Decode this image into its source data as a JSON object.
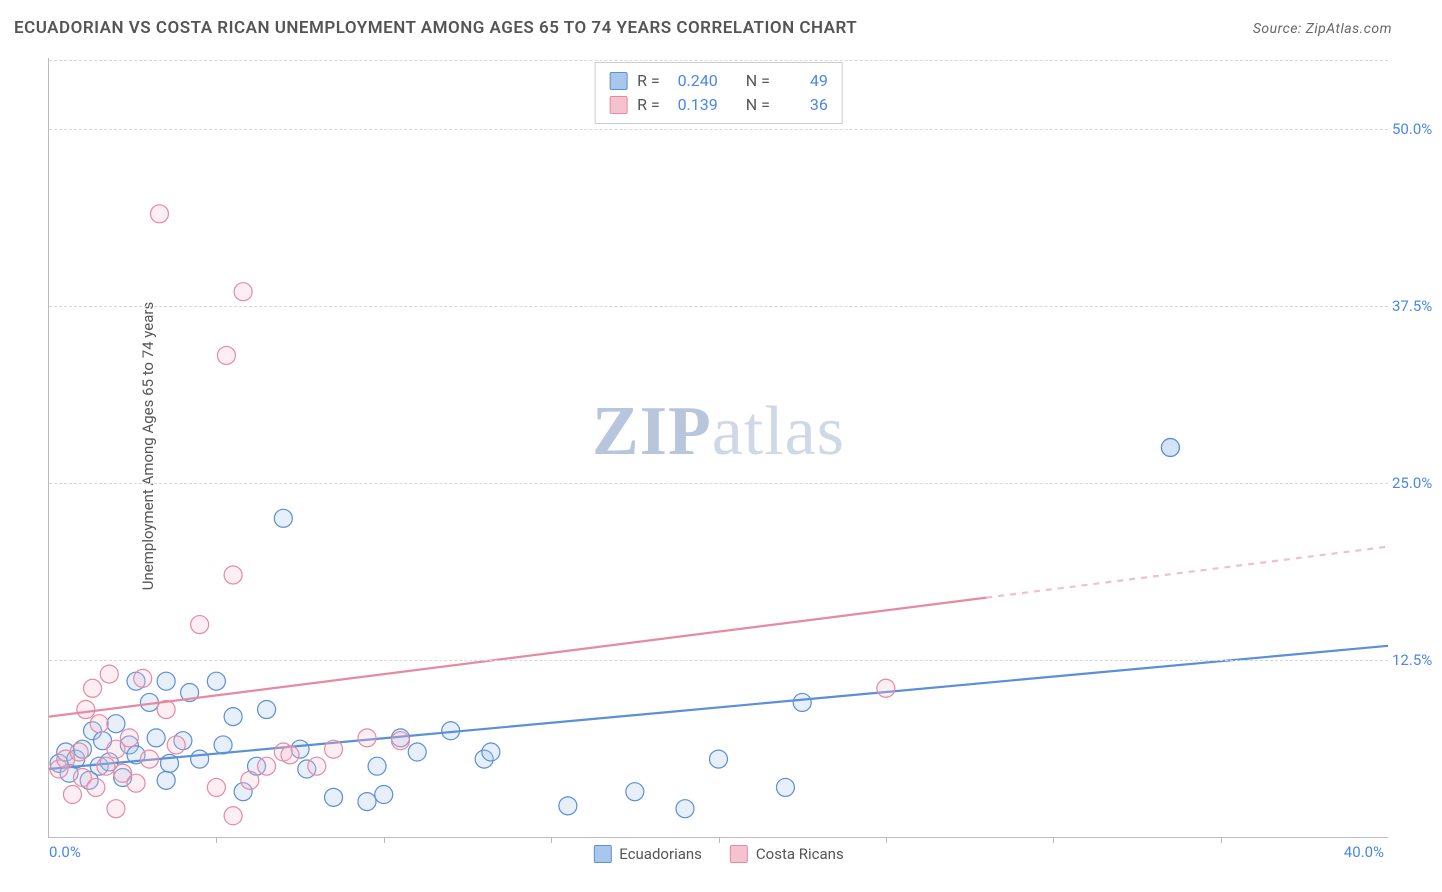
{
  "title": "ECUADORIAN VS COSTA RICAN UNEMPLOYMENT AMONG AGES 65 TO 74 YEARS CORRELATION CHART",
  "source_label": "Source:",
  "source_name": "ZipAtlas.com",
  "y_axis_label": "Unemployment Among Ages 65 to 74 years",
  "watermark_a": "ZIP",
  "watermark_b": "atlas",
  "chart": {
    "type": "scatter",
    "xlim": [
      0,
      40
    ],
    "ylim": [
      0,
      55
    ],
    "x_tick_min_label": "0.0%",
    "x_tick_max_label": "40.0%",
    "x_minor_tick_positions": [
      5,
      10,
      15,
      20,
      25,
      30,
      35
    ],
    "y_ticks": [
      {
        "v": 12.5,
        "label": "12.5%"
      },
      {
        "v": 25.0,
        "label": "25.0%"
      },
      {
        "v": 37.5,
        "label": "37.5%"
      },
      {
        "v": 50.0,
        "label": "50.0%"
      }
    ],
    "grid_color": "#d8d8d8",
    "axis_color": "#bbbbbb",
    "background_color": "#ffffff",
    "tick_label_color": "#4a87e8",
    "marker_radius": 9,
    "marker_stroke_width": 1.2,
    "marker_fill_opacity": 0.28,
    "trend_line_width": 2.2,
    "series": [
      {
        "name": "Ecuadorians",
        "color_stroke": "#5b8fd6",
        "color_fill": "#a9c6ec",
        "R_label": "R =",
        "R": "0.240",
        "N_label": "N =",
        "N": "49",
        "trend": {
          "x1": 0,
          "y1": 4.8,
          "x2": 40,
          "y2": 13.5,
          "dash_after_x": null
        },
        "points": [
          [
            0.3,
            5.2
          ],
          [
            0.5,
            6.0
          ],
          [
            0.6,
            4.5
          ],
          [
            0.8,
            5.5
          ],
          [
            1.0,
            6.2
          ],
          [
            1.2,
            4.0
          ],
          [
            1.3,
            7.5
          ],
          [
            1.5,
            5.0
          ],
          [
            1.6,
            6.8
          ],
          [
            1.8,
            5.3
          ],
          [
            2.0,
            8.0
          ],
          [
            2.2,
            4.2
          ],
          [
            2.4,
            6.5
          ],
          [
            2.6,
            5.8
          ],
          [
            2.6,
            11.0
          ],
          [
            3.0,
            9.5
          ],
          [
            3.2,
            7.0
          ],
          [
            3.5,
            11.0
          ],
          [
            3.5,
            4.0
          ],
          [
            3.6,
            5.2
          ],
          [
            4.0,
            6.8
          ],
          [
            4.2,
            10.2
          ],
          [
            4.5,
            5.5
          ],
          [
            5.0,
            11.0
          ],
          [
            5.2,
            6.5
          ],
          [
            5.5,
            8.5
          ],
          [
            5.8,
            3.2
          ],
          [
            6.2,
            5.0
          ],
          [
            6.5,
            9.0
          ],
          [
            7.0,
            22.5
          ],
          [
            7.5,
            6.2
          ],
          [
            7.7,
            4.8
          ],
          [
            8.5,
            2.8
          ],
          [
            9.5,
            2.5
          ],
          [
            9.8,
            5.0
          ],
          [
            10.0,
            3.0
          ],
          [
            10.5,
            7.0
          ],
          [
            11.0,
            6.0
          ],
          [
            12.0,
            7.5
          ],
          [
            13.0,
            5.5
          ],
          [
            13.2,
            6.0
          ],
          [
            15.5,
            2.2
          ],
          [
            17.5,
            3.2
          ],
          [
            19.0,
            2.0
          ],
          [
            20.0,
            5.5
          ],
          [
            22.0,
            3.5
          ],
          [
            22.5,
            9.5
          ],
          [
            33.5,
            27.5
          ],
          [
            33.5,
            27.5
          ]
        ]
      },
      {
        "name": "Costa Ricans",
        "color_stroke": "#e68aa3",
        "color_fill": "#f5c2d0",
        "R_label": "R =",
        "R": "0.139",
        "N_label": "N =",
        "N": "36",
        "trend": {
          "x1": 0,
          "y1": 8.5,
          "x2": 40,
          "y2": 20.5,
          "dash_after_x": 28
        },
        "points": [
          [
            0.3,
            4.8
          ],
          [
            0.5,
            5.5
          ],
          [
            0.7,
            3.0
          ],
          [
            0.9,
            6.0
          ],
          [
            1.0,
            4.2
          ],
          [
            1.1,
            9.0
          ],
          [
            1.3,
            10.5
          ],
          [
            1.4,
            3.5
          ],
          [
            1.5,
            8.0
          ],
          [
            1.7,
            5.0
          ],
          [
            1.8,
            11.5
          ],
          [
            2.0,
            6.2
          ],
          [
            2.0,
            2.0
          ],
          [
            2.2,
            4.5
          ],
          [
            2.4,
            7.0
          ],
          [
            2.6,
            3.8
          ],
          [
            2.8,
            11.2
          ],
          [
            3.0,
            5.5
          ],
          [
            3.3,
            44.0
          ],
          [
            3.5,
            9.0
          ],
          [
            3.8,
            6.5
          ],
          [
            4.5,
            15.0
          ],
          [
            5.0,
            3.5
          ],
          [
            5.3,
            34.0
          ],
          [
            5.5,
            1.5
          ],
          [
            5.5,
            18.5
          ],
          [
            5.8,
            38.5
          ],
          [
            6.0,
            4.0
          ],
          [
            6.5,
            5.0
          ],
          [
            7.0,
            6.0
          ],
          [
            7.2,
            5.8
          ],
          [
            8.0,
            5.0
          ],
          [
            8.5,
            6.2
          ],
          [
            9.5,
            7.0
          ],
          [
            10.5,
            6.8
          ],
          [
            25.0,
            10.5
          ]
        ]
      }
    ]
  },
  "legend_bottom": [
    {
      "label": "Ecuadorians",
      "fill": "#a9c6ec",
      "stroke": "#5b8fd6"
    },
    {
      "label": "Costa Ricans",
      "fill": "#f5c2d0",
      "stroke": "#e68aa3"
    }
  ]
}
